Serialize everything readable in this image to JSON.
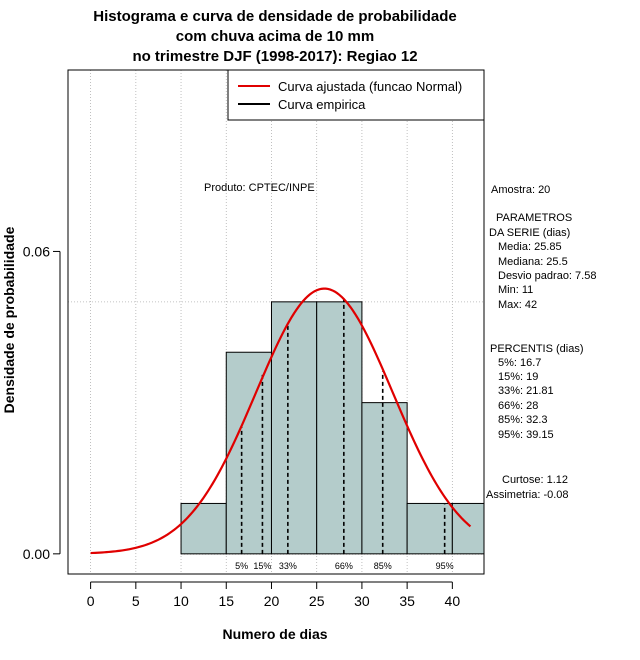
{
  "chart_data": {
    "type": "bar",
    "title_lines": [
      "Histograma e curva de densidade de probabilidade",
      "com chuva acima de 10 mm",
      "no trimestre DJF (1998-2017): Regiao 12"
    ],
    "xlabel": "Numero de dias",
    "ylabel": "Densidade de probabilidade",
    "xlim": [
      -2.5,
      43.5
    ],
    "ylim": [
      -0.004,
      0.096
    ],
    "x_ticks": [
      0,
      5,
      10,
      15,
      20,
      25,
      30,
      35,
      40
    ],
    "y_ticks": [
      0.0,
      0.06
    ],
    "y_tick_labels": [
      "0.00",
      "0.06"
    ],
    "bins": [
      {
        "x0": 10,
        "x1": 15,
        "density": 0.01
      },
      {
        "x0": 15,
        "x1": 20,
        "density": 0.04
      },
      {
        "x0": 20,
        "x1": 25,
        "density": 0.05
      },
      {
        "x0": 25,
        "x1": 30,
        "density": 0.05
      },
      {
        "x0": 30,
        "x1": 35,
        "density": 0.03
      },
      {
        "x0": 35,
        "x1": 40,
        "density": 0.01
      },
      {
        "x0": 40,
        "x1": 43.5,
        "density": 0.01
      }
    ],
    "normal_fit": {
      "mean": 25.85,
      "sd": 7.58,
      "x_start": 0,
      "x_end": 42
    },
    "empirical_curve": [
      [
        16.7,
        0.0252
      ],
      [
        19.0,
        0.0355
      ],
      [
        21.81,
        0.0458
      ],
      [
        28.0,
        0.0505
      ],
      [
        32.3,
        0.0362
      ],
      [
        39.15,
        0.0098
      ]
    ],
    "percentiles": [
      {
        "label": "5%",
        "value": 16.7
      },
      {
        "label": "15%",
        "value": 19
      },
      {
        "label": "33%",
        "value": 21.81
      },
      {
        "label": "66%",
        "value": 28
      },
      {
        "label": "85%",
        "value": 32.3
      },
      {
        "label": "95%",
        "value": 39.15
      }
    ],
    "hline_y": 0.05,
    "grid": true,
    "legend": {
      "position": "top-right",
      "items": [
        {
          "label": "Curva ajustada (funcao Normal)",
          "color": "#e00000"
        },
        {
          "label": "Curva empirica",
          "color": "#000000"
        }
      ]
    },
    "annotations": {
      "produto": "Produto: CPTEC/INPE",
      "amostra": "Amostra: 20",
      "parametros_lines": [
        "PARAMETROS",
        "DA SERIE (dias)"
      ],
      "stats_lines": [
        "Media: 25.85",
        "Mediana: 25.5",
        "Desvio padrao: 7.58",
        "Min: 11",
        "Max: 42"
      ],
      "percentis_header": "PERCENTIS (dias)",
      "percentis_lines": [
        "5%: 16.7",
        "15%: 19",
        "33%: 21.81",
        "66%: 28",
        "85%: 32.3",
        "95%: 39.15"
      ],
      "curtose": "Curtose: 1.12",
      "assimetria": "Assimetria: -0.08"
    },
    "colors": {
      "bar_fill": "#b4cccb",
      "fit_curve": "#e00000",
      "grid": "#b0b0b0"
    }
  }
}
